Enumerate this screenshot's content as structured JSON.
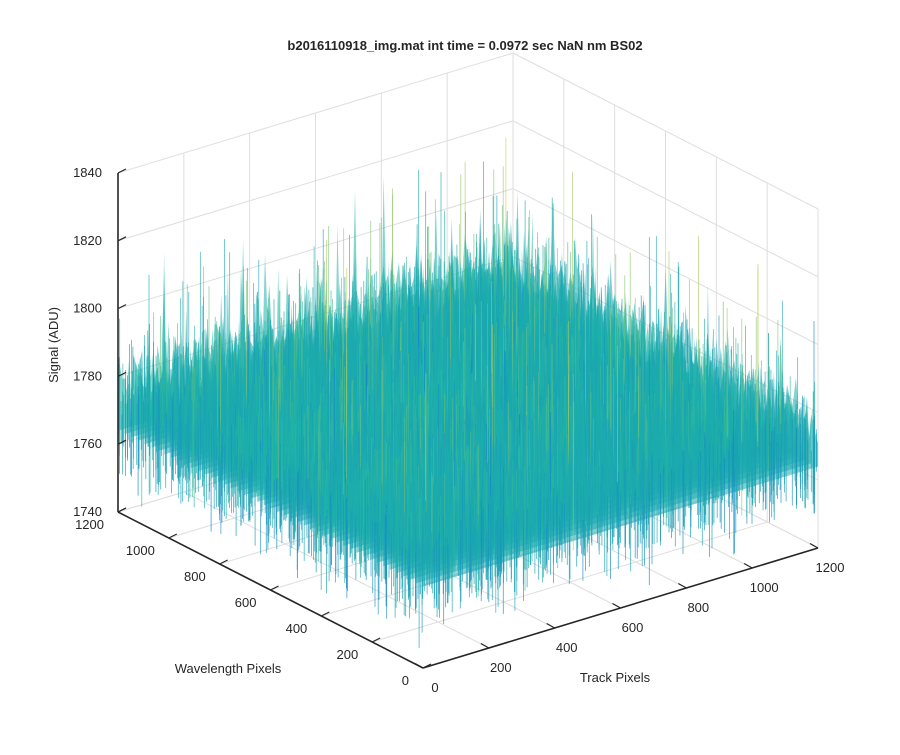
{
  "chart_data": {
    "type": "surface",
    "title": "b2016110918_img.mat int time = 0.0972 sec  NaN nm BS02",
    "xlabel": "Track Pixels",
    "ylabel": "Wavelength Pixels",
    "zlabel": "Signal (ADU)",
    "xlim": [
      0,
      1200
    ],
    "ylim": [
      0,
      1200
    ],
    "zlim": [
      1740,
      1840
    ],
    "x_ticks": [
      "0",
      "200",
      "400",
      "600",
      "800",
      "1000",
      "1200"
    ],
    "y_ticks": [
      "0",
      "200",
      "400",
      "600",
      "800",
      "1000",
      "1200"
    ],
    "z_ticks": [
      "1740",
      "1760",
      "1780",
      "1800",
      "1820",
      "1840"
    ],
    "grid": true,
    "colormap": "parula",
    "colors": {
      "low": "#0d6fd6",
      "mid": "#1fb6a6",
      "high": "#d9d24a"
    },
    "z_mean": 1778,
    "z_range_visible": [
      1735,
      1830
    ]
  }
}
